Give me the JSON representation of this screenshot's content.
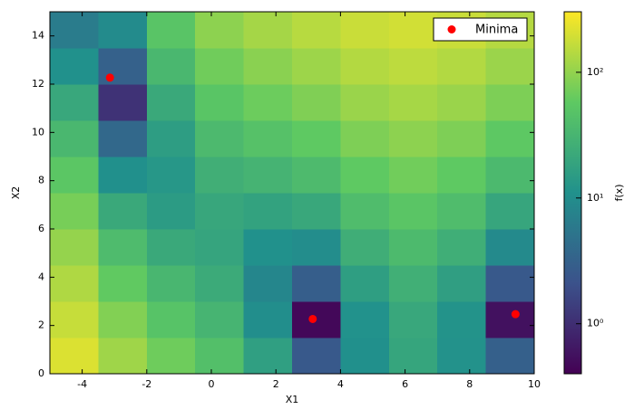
{
  "chart_data": {
    "type": "heatmap",
    "x_label": "X1",
    "y_label": "X2",
    "colorbar_label": "f(x)",
    "colormap": "viridis",
    "log_color_scale": true,
    "xbins": [
      -5,
      -3.5,
      -2,
      -0.5,
      1,
      2.5,
      4,
      5.5,
      7,
      8.5,
      10
    ],
    "ybins": [
      0,
      1.5,
      3,
      4.5,
      6,
      7.5,
      9,
      10.5,
      12,
      13.5,
      15
    ],
    "z": [
      [
        212,
        113.5,
        68,
        43,
        16.5,
        2.5,
        10.7,
        19.7,
        11.5,
        3.0
      ],
      [
        171,
        84,
        48,
        31,
        10.1,
        0.46,
        11.2,
        20.9,
        11.7,
        0.55
      ],
      [
        134,
        59,
        33,
        23,
        8.3,
        2.9,
        16.1,
        26.6,
        16.4,
        2.55
      ],
      [
        103,
        38,
        22,
        19.4,
        11.0,
        9.8,
        25.5,
        36.8,
        25.6,
        9.05
      ],
      [
        75,
        22,
        15,
        20.6,
        18.1,
        21.2,
        39.5,
        51.5,
        39.3,
        20.05
      ],
      [
        53,
        10.8,
        13,
        26,
        29.8,
        37.1,
        57.9,
        70.7,
        57.6,
        35.5
      ],
      [
        34,
        3.7,
        15.5,
        36,
        46,
        57.6,
        80.8,
        94.4,
        80.3,
        55.5
      ],
      [
        21,
        1.1,
        22,
        51,
        66.6,
        82.5,
        108.3,
        122.6,
        107.5,
        80.0
      ],
      [
        11,
        3.1,
        34,
        70,
        91.8,
        111.9,
        140.2,
        155.3,
        139.2,
        109.0
      ],
      [
        6.4,
        9.5,
        50,
        94,
        121.5,
        145.8,
        176.6,
        192.5,
        175.5,
        142.5
      ]
    ],
    "zlim": [
      0.4,
      303
    ],
    "zticks": [
      {
        "value": 1,
        "label": "10⁰"
      },
      {
        "value": 10,
        "label": "10¹"
      },
      {
        "value": 100,
        "label": "10²"
      }
    ],
    "xlim": [
      -5,
      10
    ],
    "ylim": [
      0,
      15
    ],
    "xticks": [
      -4,
      -2,
      0,
      2,
      4,
      6,
      8,
      10
    ],
    "yticks": [
      0,
      2,
      4,
      6,
      8,
      10,
      12,
      14
    ],
    "points": {
      "name": "Minima",
      "color": "#ff0000",
      "x": [
        -3.14,
        3.14,
        9.42
      ],
      "y": [
        12.27,
        2.27,
        2.47
      ]
    },
    "legend": "upper right"
  }
}
